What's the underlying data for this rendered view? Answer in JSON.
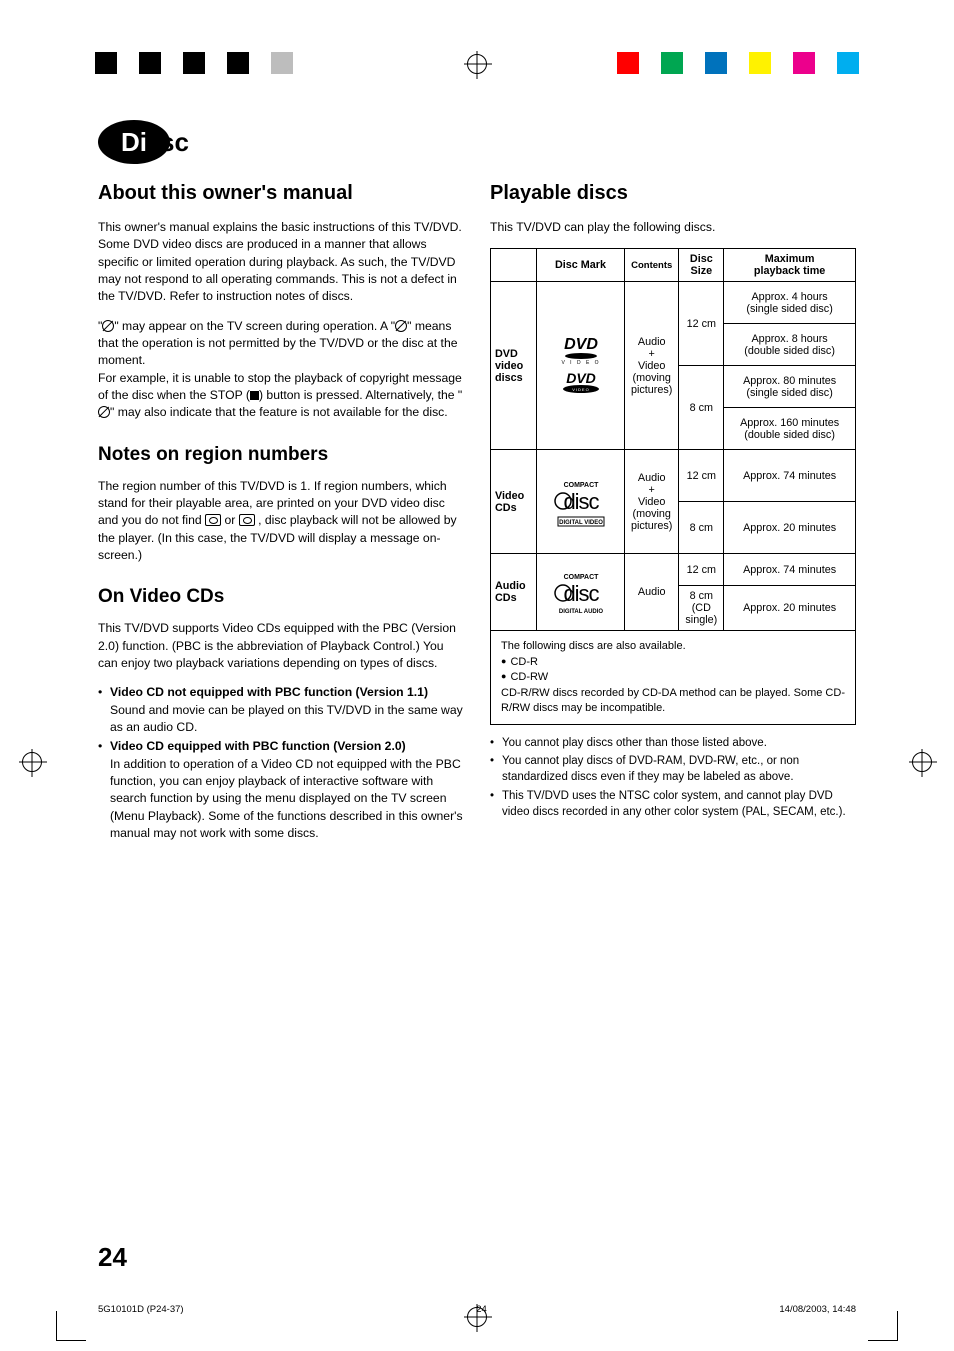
{
  "print_marks": {
    "left_colors": [
      "#000000",
      "#ffffff",
      "#000000",
      "#ffffff",
      "#000000",
      "#ffffff",
      "#000000",
      "#ffffff",
      "#bdbdbd"
    ],
    "right_colors": [
      "#ff0000",
      "#ffffff",
      "#00a651",
      "#ffffff",
      "#0072bc",
      "#ffffff",
      "#fff200",
      "#ffffff",
      "#ec008c",
      "#ffffff",
      "#00aeef"
    ]
  },
  "badge": {
    "inner": "Di",
    "outer": "sc"
  },
  "left": {
    "h_about": "About this owner's manual",
    "p_about": "This owner's manual explains the basic instructions of this TV/DVD. Some DVD video discs are produced in a manner that allows specific or limited operation during playback. As such, the TV/DVD may not respond to all operating commands. This is not a defect in the TV/DVD. Refer to instruction notes of discs.",
    "p_prohibit_1a": "\"",
    "p_prohibit_1b": "\"  may appear on the TV screen during operation. A \"",
    "p_prohibit_1c": "\" means that the operation is not permitted by the TV/DVD or the disc at the moment.",
    "p_prohibit_2a": "For example, it  is unable to stop the playback of copyright message of the disc when the STOP (",
    "p_prohibit_2b": ") button is pressed. Alternatively, the \"",
    "p_prohibit_2c": "\" may also indicate that the feature is not available for the disc.",
    "h_region": "Notes on region numbers",
    "p_region_a": "The region number of this TV/DVD is 1. If region numbers, which stand for their playable area, are printed on your DVD video disc and you do not find ",
    "p_region_b": " or ",
    "p_region_c": " , disc playback will not be allowed by the player. (In this case, the TV/DVD will display a message on-screen.)",
    "h_vcd": "On Video CDs",
    "p_vcd": "This TV/DVD supports Video CDs equipped with the PBC (Version 2.0) function. (PBC is the abbreviation of Playback Control.) You can enjoy two playback variations depending on types of discs.",
    "vcd_items": [
      {
        "title": "Video CD not equipped with PBC function (Version 1.1)",
        "body": "Sound and movie can be played on this TV/DVD in the same way as an audio CD."
      },
      {
        "title": "Video CD equipped with PBC function (Version 2.0)",
        "body": "In addition to operation of a Video CD not equipped with the PBC function, you can enjoy playback of interactive software with search function by using the menu displayed on the TV screen (Menu Playback). Some of the functions described in this owner's manual may not work with some discs."
      }
    ]
  },
  "right": {
    "h_play": "Playable discs",
    "p_play": "This TV/DVD can play the following discs.",
    "table": {
      "headers": {
        "c0": "",
        "c1": "Disc Mark",
        "c2": "Contents",
        "c3_l1": "Disc",
        "c3_l2": "Size",
        "c4_l1": "Maximum",
        "c4_l2": "playback time"
      },
      "group1": {
        "label_l1": "DVD",
        "label_l2": "video",
        "label_l3": "discs",
        "contents_l1": "Audio",
        "contents_l2": "+",
        "contents_l3": "Video",
        "contents_l4": "(moving",
        "contents_l5": "pictures)",
        "size_a": "12 cm",
        "size_b": "8 cm",
        "r1_l1": "Approx. 4 hours",
        "r1_l2": "(single sided disc)",
        "r2_l1": "Approx. 8 hours",
        "r2_l2": "(double sided disc)",
        "r3_l1": "Approx. 80 minutes",
        "r3_l2": "(single sided disc)",
        "r4_l1": "Approx. 160 minutes",
        "r4_l2": "(double sided disc)"
      },
      "group2": {
        "label_l1": "Video",
        "label_l2": "CDs",
        "contents_l1": "Audio",
        "contents_l2": "+",
        "contents_l3": "Video",
        "contents_l4": "(moving",
        "contents_l5": "pictures)",
        "size_a": "12 cm",
        "size_b": "8 cm",
        "r1": "Approx. 74 minutes",
        "r2": "Approx. 20 minutes"
      },
      "group3": {
        "label_l1": "Audio",
        "label_l2": "CDs",
        "contents": "Audio",
        "size_a": "12 cm",
        "size_b_l1": "8 cm",
        "size_b_l2": "(CD",
        "size_b_l3": "single)",
        "r1": "Approx. 74 minutes",
        "r2": "Approx. 20 minutes"
      }
    },
    "tnote": {
      "l1": "The following discs are also available.",
      "l2": "CD-R",
      "l3": "CD-RW",
      "l4": "CD-R/RW discs recorded by CD-DA method can be played. Some CD-R/RW discs may be incompatible."
    },
    "notes": [
      "You cannot play discs other than those listed above.",
      "You cannot play discs of DVD-RAM, DVD-RW, etc., or non standardized discs even if they may be labeled as above.",
      "This TV/DVD uses the NTSC color system, and cannot play DVD video discs recorded in any other color system (PAL, SECAM, etc.)."
    ]
  },
  "page_number": "24",
  "footer": {
    "left": "5G10101D (P24-37)",
    "mid": "24",
    "right": "14/08/2003, 14:48"
  }
}
